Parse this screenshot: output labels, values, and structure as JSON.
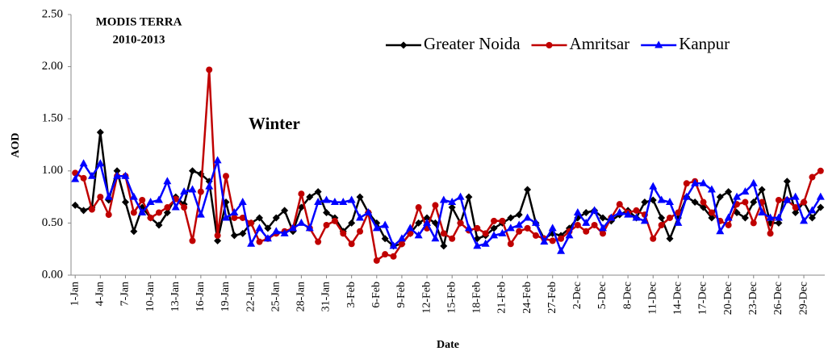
{
  "chart_data": {
    "type": "line",
    "title": "MODIS TERRA",
    "subtitle": "2010-2013",
    "annotation": "Winter",
    "x_label": "Date",
    "y_label": "AOD",
    "categories": [
      "1-Jan",
      null,
      null,
      "4-Jan",
      null,
      null,
      "7-Jan",
      null,
      null,
      "10-Jan",
      null,
      null,
      "13-Jan",
      null,
      null,
      "16-Jan",
      null,
      null,
      "19-Jan",
      null,
      null,
      "22-Jan",
      null,
      null,
      "25-Jan",
      null,
      null,
      "28-Jan",
      null,
      null,
      "31-Jan",
      null,
      null,
      "3-Feb",
      null,
      null,
      "6-Feb",
      null,
      null,
      "9-Feb",
      null,
      null,
      "12-Feb",
      null,
      null,
      "15-Feb",
      null,
      null,
      "18-Feb",
      null,
      null,
      "21-Feb",
      null,
      null,
      "24-Feb",
      null,
      null,
      "27-Feb",
      null,
      null,
      "2-Dec",
      null,
      null,
      "5-Dec",
      null,
      null,
      "8-Dec",
      null,
      null,
      "11-Dec",
      null,
      null,
      "14-Dec",
      null,
      null,
      "17-Dec",
      null,
      null,
      "20-Dec",
      null,
      null,
      "23-Dec",
      null,
      null,
      "26-Dec",
      null,
      null,
      "29-Dec",
      null,
      null
    ],
    "series": [
      {
        "name": "Greater Noida",
        "color": "#000000",
        "marker": "diamond",
        "values": [
          0.67,
          0.62,
          0.65,
          1.37,
          0.72,
          1.0,
          0.7,
          0.42,
          0.65,
          0.55,
          0.48,
          0.6,
          0.75,
          0.68,
          1.0,
          0.97,
          0.9,
          0.33,
          0.7,
          0.38,
          0.4,
          0.5,
          0.55,
          0.45,
          0.55,
          0.62,
          0.42,
          0.65,
          0.75,
          0.8,
          0.6,
          0.55,
          0.42,
          0.5,
          0.75,
          0.6,
          0.5,
          0.35,
          0.28,
          0.3,
          0.4,
          0.5,
          0.55,
          0.5,
          0.28,
          0.65,
          0.5,
          0.75,
          0.35,
          0.38,
          0.45,
          0.5,
          0.55,
          0.58,
          0.82,
          0.5,
          0.35,
          0.4,
          0.38,
          0.45,
          0.55,
          0.6,
          0.62,
          0.55,
          0.52,
          0.58,
          0.62,
          0.55,
          0.7,
          0.72,
          0.55,
          0.35,
          0.55,
          0.75,
          0.7,
          0.65,
          0.55,
          0.75,
          0.8,
          0.6,
          0.55,
          0.7,
          0.82,
          0.5,
          0.5,
          0.9,
          0.6,
          0.7,
          0.55,
          0.65
        ]
      },
      {
        "name": "Amritsar",
        "color": "#c00000",
        "marker": "circle",
        "values": [
          0.98,
          0.93,
          0.63,
          0.75,
          0.58,
          0.95,
          0.95,
          0.6,
          0.72,
          0.55,
          0.6,
          0.65,
          0.73,
          0.65,
          0.33,
          0.8,
          1.97,
          0.38,
          0.95,
          0.55,
          0.55,
          0.5,
          0.32,
          0.35,
          0.4,
          0.42,
          0.45,
          0.78,
          0.45,
          0.32,
          0.48,
          0.52,
          0.4,
          0.3,
          0.42,
          0.6,
          0.14,
          0.2,
          0.18,
          0.3,
          0.4,
          0.65,
          0.45,
          0.67,
          0.4,
          0.35,
          0.5,
          0.43,
          0.45,
          0.4,
          0.52,
          0.52,
          0.3,
          0.42,
          0.45,
          0.38,
          0.35,
          0.33,
          0.35,
          0.42,
          0.48,
          0.42,
          0.48,
          0.4,
          0.55,
          0.68,
          0.6,
          0.62,
          0.58,
          0.35,
          0.48,
          0.55,
          0.6,
          0.88,
          0.9,
          0.7,
          0.6,
          0.52,
          0.48,
          0.68,
          0.7,
          0.5,
          0.7,
          0.4,
          0.72,
          0.72,
          0.65,
          0.7,
          0.94,
          1.0
        ]
      },
      {
        "name": "Kanpur",
        "color": "#0000ff",
        "marker": "triangle",
        "values": [
          0.92,
          1.07,
          0.95,
          1.07,
          0.75,
          0.95,
          0.95,
          0.75,
          0.6,
          0.7,
          0.72,
          0.9,
          0.65,
          0.8,
          0.82,
          0.58,
          0.85,
          1.1,
          0.55,
          0.6,
          0.7,
          0.3,
          0.45,
          0.35,
          0.42,
          0.4,
          0.45,
          0.5,
          0.45,
          0.7,
          0.72,
          0.7,
          0.7,
          0.72,
          0.55,
          0.6,
          0.45,
          0.48,
          0.28,
          0.35,
          0.45,
          0.38,
          0.5,
          0.35,
          0.72,
          0.7,
          0.75,
          0.45,
          0.28,
          0.3,
          0.38,
          0.4,
          0.45,
          0.48,
          0.55,
          0.5,
          0.32,
          0.45,
          0.23,
          0.38,
          0.6,
          0.5,
          0.62,
          0.45,
          0.55,
          0.6,
          0.58,
          0.55,
          0.52,
          0.85,
          0.72,
          0.7,
          0.5,
          0.75,
          0.88,
          0.88,
          0.82,
          0.42,
          0.55,
          0.75,
          0.8,
          0.88,
          0.6,
          0.55,
          0.55,
          0.72,
          0.75,
          0.52,
          0.62,
          0.75
        ]
      }
    ],
    "ylim": [
      0,
      2.5
    ],
    "yticks": [
      {
        "value": 0,
        "label": "0.00"
      },
      {
        "value": 0.5,
        "label": "0.50"
      },
      {
        "value": 1,
        "label": "1.00"
      },
      {
        "value": 1.5,
        "label": "1.50"
      },
      {
        "value": 2,
        "label": "2.00"
      },
      {
        "value": 2.5,
        "label": "2.50"
      }
    ],
    "grid": false,
    "legend_position": "top-right"
  }
}
